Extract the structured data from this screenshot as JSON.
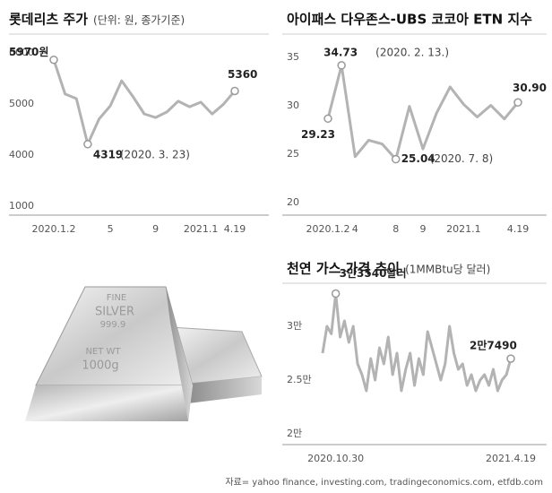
{
  "chart_data": [
    {
      "type": "line",
      "title": "롯데리츠 주가",
      "subtitle": "(단위: 원, 종가기준)",
      "categories": [
        "2020.1.2",
        null,
        null,
        null,
        null,
        "5",
        null,
        null,
        null,
        "9",
        null,
        null,
        null,
        "2021.1",
        null,
        null,
        "4.19"
      ],
      "values": [
        5970,
        5300,
        5210,
        4319,
        4810,
        5070,
        5560,
        5250,
        4910,
        4840,
        4950,
        5160,
        5050,
        5140,
        4910,
        5100,
        5360
      ],
      "value_labels": [
        "5970원",
        null,
        null,
        "4319",
        null,
        null,
        null,
        null,
        null,
        null,
        null,
        null,
        null,
        null,
        null,
        null,
        "5360"
      ],
      "annotations": [
        "(2020. 3. 23)"
      ],
      "color": "#b3b3b3",
      "ylim": [
        1000,
        6000
      ],
      "yticks": [
        6000,
        5000,
        4000,
        1000
      ]
    },
    {
      "type": "line",
      "title": "아이패스 다우존스-UBS 코코아 ETN 지수",
      "categories": [
        "2020.1.2",
        null,
        "4",
        null,
        null,
        "8",
        null,
        "9",
        null,
        null,
        "2021.1",
        null,
        null,
        null,
        "4.19"
      ],
      "values": [
        29.23,
        34.73,
        25.3,
        27.0,
        26.6,
        25.04,
        30.5,
        26.1,
        29.8,
        32.5,
        30.7,
        29.4,
        30.6,
        29.2,
        30.9
      ],
      "value_labels": [
        "29.23",
        "34.73",
        null,
        null,
        null,
        "25.04",
        null,
        null,
        null,
        null,
        null,
        null,
        null,
        null,
        "30.90"
      ],
      "annotations": [
        "(2020. 2. 13.)",
        "(2020. 7. 8)"
      ],
      "color": "#b3b3b3",
      "ylim": [
        20,
        35
      ],
      "yticks": [
        35,
        30,
        25,
        20
      ]
    },
    {
      "type": "line",
      "title": "천연 가스 가격 추이",
      "subtitle": "(1MMBtu당 달러)",
      "categories": [
        null,
        null,
        null,
        "2020.10.30",
        null,
        null,
        null,
        null,
        null,
        null,
        null,
        null,
        null,
        null,
        null,
        null,
        null,
        null,
        null,
        null,
        null,
        null,
        null,
        null,
        null,
        null,
        null,
        null,
        null,
        null,
        null,
        null,
        null,
        null,
        null,
        null,
        null,
        null,
        null,
        null,
        null,
        null,
        null,
        "2021.4.19"
      ],
      "values": [
        28000,
        30500,
        29800,
        33540,
        29500,
        31000,
        29000,
        30500,
        27000,
        26000,
        24500,
        27500,
        25500,
        28500,
        27000,
        29500,
        26000,
        28000,
        24500,
        26500,
        28000,
        25000,
        27500,
        26000,
        30000,
        28500,
        27000,
        25500,
        27000,
        30500,
        28000,
        26500,
        27000,
        25000,
        26000,
        24500,
        25500,
        26000,
        25000,
        26500,
        24500,
        25500,
        26000,
        27490
      ],
      "value_labels": [
        null,
        null,
        null,
        "3만3540달러",
        null,
        null,
        null,
        null,
        null,
        null,
        null,
        null,
        null,
        null,
        null,
        null,
        null,
        null,
        null,
        null,
        null,
        null,
        null,
        null,
        null,
        null,
        null,
        null,
        null,
        null,
        null,
        null,
        null,
        null,
        null,
        null,
        null,
        null,
        null,
        null,
        null,
        null,
        null,
        "2만7490"
      ],
      "color": "#b3b3b3",
      "ylim": [
        20000,
        30000
      ],
      "yticks": [
        {
          "value": 30000,
          "label": "3만"
        },
        {
          "value": 25000,
          "label": "2.5만"
        },
        {
          "value": 20000,
          "label": "2만"
        }
      ]
    }
  ],
  "source": "자료= yahoo finance, investing.com, tradingeconomics.com, etfdb.com",
  "image": {
    "texts": [
      "FINE",
      "SILVER",
      "999.9",
      "NET WT",
      "1000g"
    ]
  }
}
